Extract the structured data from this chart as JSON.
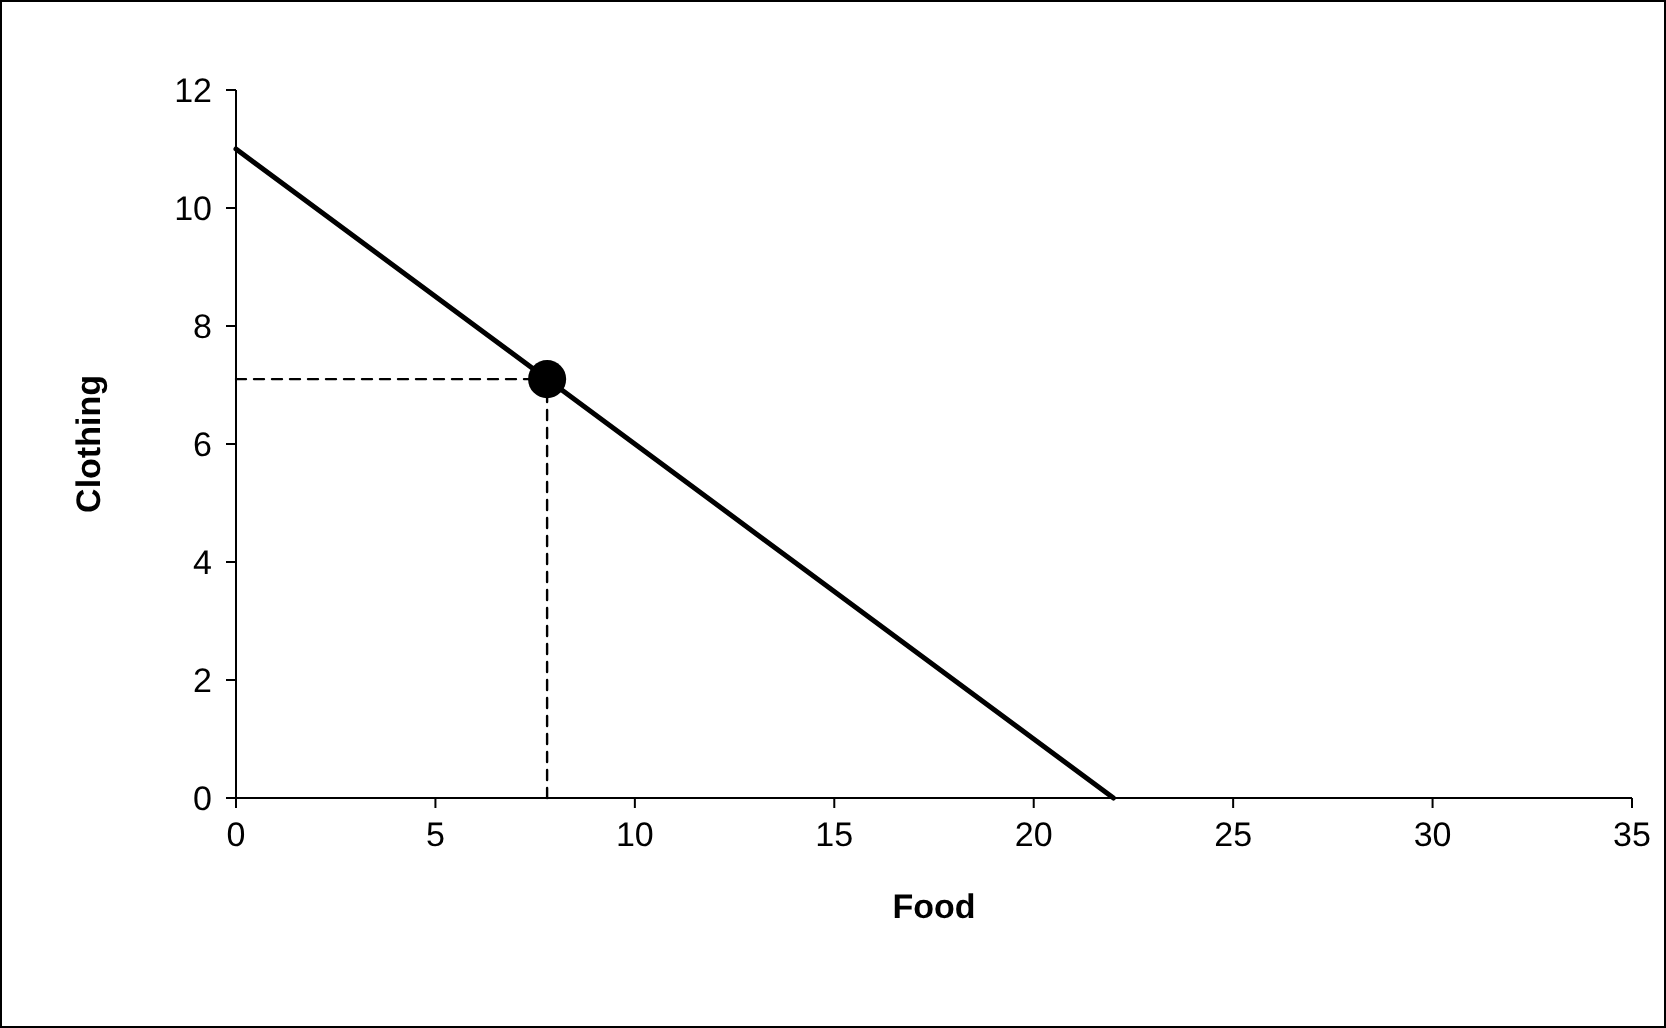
{
  "chart_data": {
    "type": "line",
    "xlabel": "Food",
    "ylabel": "Clothing",
    "xlim": [
      0,
      35
    ],
    "xticks": [
      0,
      5,
      10,
      15,
      20,
      25,
      30,
      35
    ],
    "ylim": [
      0,
      12
    ],
    "yticks": [
      0,
      2,
      4,
      6,
      8,
      10,
      12
    ],
    "grid": false,
    "series": [
      {
        "color": "#000000",
        "x": [
          0,
          2,
          4,
          6,
          8,
          10,
          12,
          14,
          16,
          18,
          20,
          22
        ],
        "values": [
          11,
          10,
          9,
          8,
          7,
          6,
          5,
          4,
          3,
          2,
          1,
          0
        ]
      },
      {
        "color": "#000000",
        "line_style": "dashed",
        "x": [
          0,
          7.8,
          7.8
        ],
        "values": [
          7.1,
          7.1,
          0
        ]
      },
      {
        "type": "scatter",
        "color": "#000000",
        "marker": "circle",
        "x": [
          7.8
        ],
        "values": [
          7.1
        ]
      }
    ]
  }
}
